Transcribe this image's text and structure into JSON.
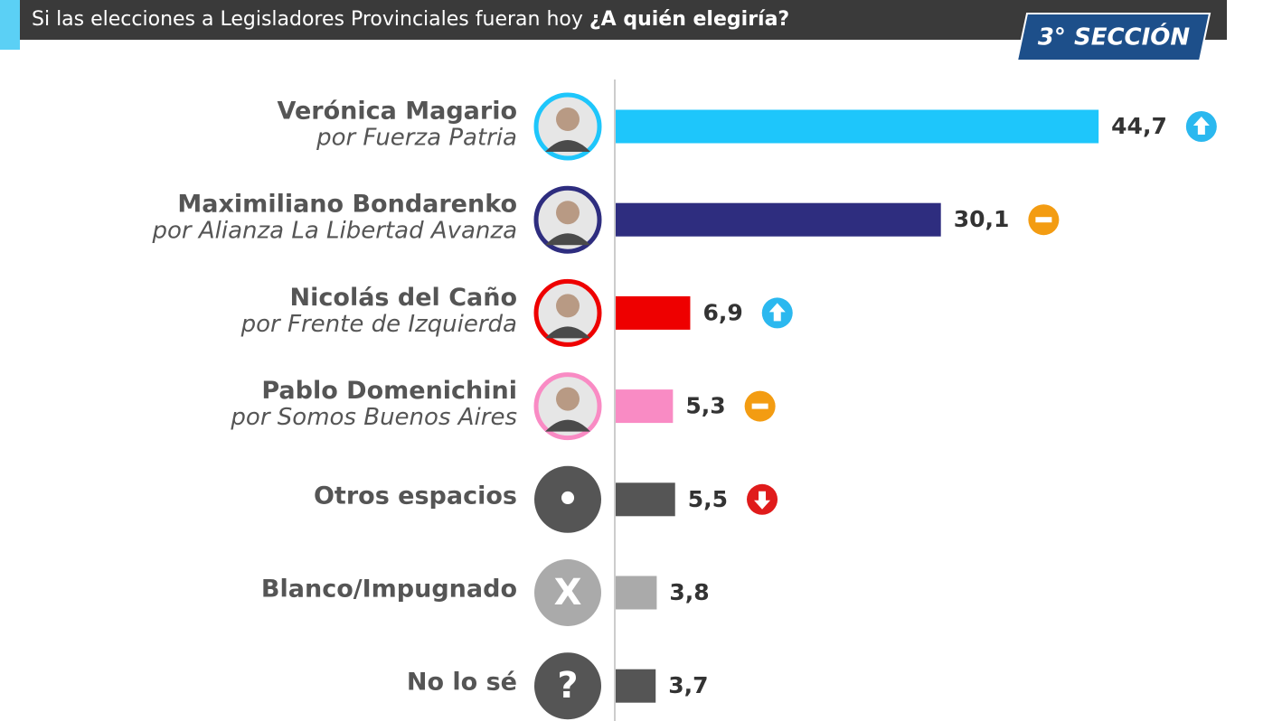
{
  "chart_data": {
    "type": "bar",
    "orientation": "horizontal",
    "title": "Si las elecciones a Legisladores Provinciales fueran hoy",
    "title_bold": "¿A quién elegiría?",
    "badge": "3° SECCIÓN",
    "categories": [
      "Verónica Magario",
      "Maximiliano Bondarenko",
      "Nicolás del Caño",
      "Pablo Domenichini",
      "Otros espacios",
      "Blanco/Impugnado",
      "No lo sé"
    ],
    "subtitles": [
      "por Fuerza Patria",
      "por Alianza La Libertad Avanza",
      "por Frente de Izquierda",
      "por Somos Buenos Aires",
      null,
      null,
      null
    ],
    "avatar_symbols": [
      null,
      null,
      null,
      null,
      "•",
      "X",
      "?"
    ],
    "values": [
      44.7,
      30.1,
      6.9,
      5.3,
      5.5,
      3.8,
      3.7
    ],
    "value_labels": [
      "44,7",
      "30,1",
      "6,9",
      "5,3",
      "5,5",
      "3,8",
      "3,7"
    ],
    "colors": [
      "#1ec6fb",
      "#2e2d7f",
      "#ee0000",
      "#f98bc4",
      "#555555",
      "#aaaaaa",
      "#555555"
    ],
    "trend": [
      "up",
      "same",
      "up",
      "same",
      "down",
      null,
      null
    ]
  }
}
